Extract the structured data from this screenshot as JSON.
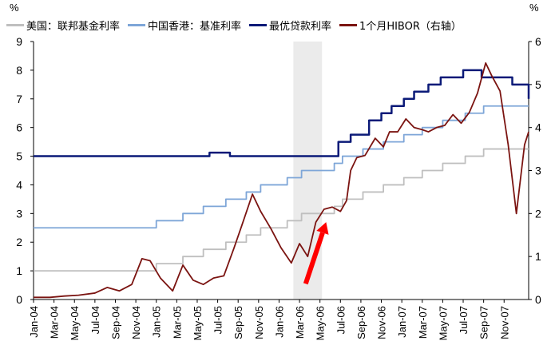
{
  "chart_data": {
    "type": "line",
    "y_unit_left": "%",
    "y_unit_right": "%",
    "ylim_left": [
      0,
      9
    ],
    "ylim_right": [
      0,
      6
    ],
    "yticks_left": [
      "0",
      "1",
      "2",
      "3",
      "4",
      "5",
      "6",
      "7",
      "8",
      "9"
    ],
    "yticks_right": [
      "0",
      "1",
      "2",
      "3",
      "4",
      "5",
      "6"
    ],
    "x_ticks": [
      "Jan-04",
      "Mar-04",
      "May-04",
      "Jul-04",
      "Sep-04",
      "Nov-04",
      "Jan-05",
      "Mar-05",
      "May-05",
      "Jul-05",
      "Sep-05",
      "Nov-05",
      "Jan-06",
      "Mar-06",
      "May-06",
      "Jul-06",
      "Sep-06",
      "Nov-06",
      "Jan-07",
      "Mar-07",
      "May-07",
      "Jul-07",
      "Sep-07",
      "Nov-07"
    ],
    "x_range_months": [
      0,
      24.2
    ],
    "legend_position": "top",
    "shaded_region": {
      "x_start": 12.7,
      "x_end": 14.1
    },
    "arrow": {
      "from": [
        13.3,
        0.55
      ],
      "to": [
        14.3,
        2.7
      ],
      "axis": "left",
      "color": "#ff0000"
    },
    "series": [
      {
        "name": "美国：联邦基金利率",
        "color": "#bfbfbf",
        "axis": "left",
        "step": true,
        "x": [
          0,
          6.0,
          7.3,
          8.3,
          9.4,
          10.4,
          11.1,
          12.4,
          13.1,
          14.7,
          15.1,
          16.1,
          17.1,
          18.1,
          19.0,
          20.0,
          21.1,
          22.0,
          23.0,
          24.0,
          25.1,
          26.1,
          27.0,
          28.1,
          29.0,
          30.0,
          42.5,
          43.6,
          46.3,
          48.0
        ],
        "y": [
          1.0,
          1.25,
          1.5,
          1.75,
          2.0,
          2.25,
          2.5,
          2.75,
          3.0,
          3.25,
          3.5,
          3.75,
          4.0,
          4.25,
          4.5,
          4.75,
          5.0,
          5.25,
          5.25,
          5.25,
          5.25,
          5.25,
          5.25,
          5.25,
          5.25,
          5.25,
          4.75,
          4.5,
          4.25,
          4.25
        ]
      },
      {
        "name": "中国香港：基准利率",
        "color": "#7ea6d8",
        "axis": "left",
        "step": true,
        "x": [
          0,
          6.0,
          7.3,
          8.3,
          9.4,
          10.4,
          11.1,
          12.4,
          13.1,
          14.7,
          15.1,
          16.1,
          17.1,
          18.1,
          19.0,
          20.0,
          21.1,
          22.0,
          30.0,
          42.5,
          43.6,
          46.3,
          48.0
        ],
        "y": [
          2.5,
          2.75,
          3.0,
          3.25,
          3.5,
          3.75,
          4.0,
          4.25,
          4.5,
          4.75,
          5.0,
          5.25,
          5.5,
          5.75,
          6.0,
          6.25,
          6.5,
          6.75,
          6.75,
          6.75,
          6.25,
          6.0,
          6.0
        ]
      },
      {
        "name": "最优贷款利率",
        "color": "#0b1a78",
        "axis": "left",
        "step": true,
        "x": [
          0,
          8.6,
          9.6,
          12.6,
          14.9,
          15.5,
          16.4,
          17.0,
          17.5,
          18.1,
          18.6,
          19.3,
          19.9,
          20.5,
          21.0,
          21.4,
          21.9,
          22.5,
          23.4,
          24.2
        ],
        "y": [
          5.0,
          5.125,
          5.0,
          5.0,
          5.5,
          5.75,
          6.25,
          6.5,
          6.75,
          7.0,
          7.25,
          7.5,
          7.75,
          7.75,
          8.0,
          8.0,
          7.75,
          7.75,
          7.5,
          7.0
        ]
      },
      {
        "name": "1个月HIBOR（右轴）",
        "color": "#7b1411",
        "axis": "right",
        "x": [
          0,
          0.8,
          1.5,
          2.2,
          3.0,
          3.6,
          4.2,
          4.8,
          5.3,
          5.7,
          6.2,
          6.8,
          7.3,
          7.8,
          8.3,
          8.8,
          9.3,
          9.8,
          10.2,
          10.7,
          11.1,
          11.6,
          12.1,
          12.6,
          13.0,
          13.4,
          13.8,
          14.2,
          14.6,
          15.0,
          15.3,
          15.5,
          15.8,
          16.2,
          16.7,
          17.1,
          17.4,
          17.8,
          18.2,
          18.6,
          19.0,
          19.3,
          19.7,
          20.1,
          20.5,
          20.9,
          21.3,
          21.7,
          22.1,
          22.4,
          22.8,
          23.2,
          23.6,
          24.0,
          24.2
        ],
        "y": [
          0.05,
          0.05,
          0.08,
          0.1,
          0.15,
          0.28,
          0.2,
          0.35,
          0.95,
          0.9,
          0.5,
          0.2,
          0.8,
          0.45,
          0.35,
          0.5,
          0.55,
          1.2,
          1.75,
          2.45,
          2.05,
          1.65,
          1.2,
          0.85,
          1.3,
          1.0,
          1.8,
          2.1,
          2.15,
          2.05,
          2.3,
          3.0,
          3.3,
          3.35,
          3.75,
          3.55,
          3.9,
          3.9,
          4.2,
          4.0,
          3.95,
          3.9,
          4.0,
          4.05,
          4.3,
          4.1,
          4.35,
          4.8,
          5.5,
          5.2,
          4.85,
          3.6,
          2.0,
          3.6,
          3.9
        ]
      }
    ]
  }
}
